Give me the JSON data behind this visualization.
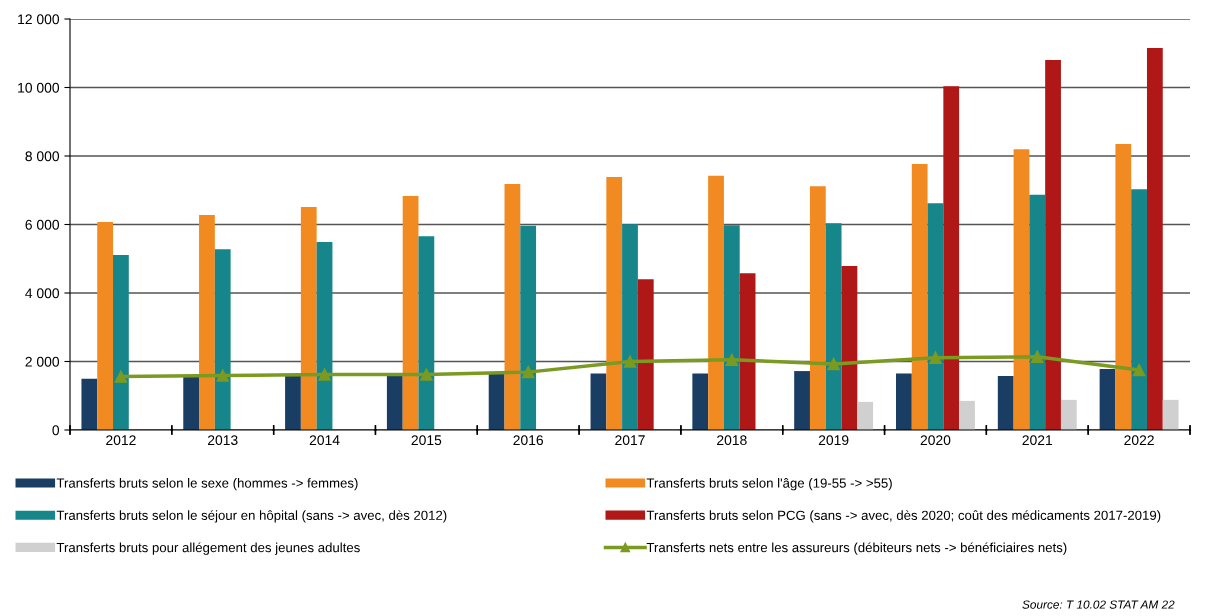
{
  "chart_data": {
    "type": "bar",
    "categories": [
      "2012",
      "2013",
      "2014",
      "2015",
      "2016",
      "2017",
      "2018",
      "2019",
      "2020",
      "2021",
      "2022"
    ],
    "series": [
      {
        "name": "Transferts bruts selon le sexe (hommes -> femmes)",
        "color": "#193d63",
        "values": [
          1500,
          1550,
          1600,
          1600,
          1650,
          1650,
          1650,
          1720,
          1650,
          1580,
          1780
        ]
      },
      {
        "name": "Transferts bruts selon l'âge (19-55 -> >55)",
        "color": "#f28a22",
        "values": [
          6070,
          6280,
          6510,
          6830,
          7180,
          7390,
          7420,
          7120,
          7770,
          8200,
          8350
        ]
      },
      {
        "name": "Transferts bruts selon le séjour en hôpital (sans -> avec, dès 2012)",
        "color": "#16868b",
        "values": [
          5110,
          5280,
          5490,
          5660,
          5960,
          6010,
          5980,
          6040,
          6620,
          6870,
          7030
        ]
      },
      {
        "name": "Transferts bruts selon PCG (sans -> avec, dès 2020; coût des médicaments 2017-2019)",
        "color": "#b01818",
        "values": [
          null,
          null,
          null,
          null,
          null,
          4400,
          4580,
          4790,
          10040,
          10800,
          11150
        ]
      },
      {
        "name": "Transferts bruts pour allégement des jeunes adultes",
        "color": "#d0d0d0",
        "values": [
          null,
          null,
          null,
          null,
          null,
          null,
          null,
          820,
          850,
          880,
          880
        ]
      },
      {
        "name": "Transferts nets entre les assureurs (débiteurs nets -> bénéficiaires nets)",
        "color": "#7a9a22",
        "type": "line",
        "marker": "triangle",
        "values": [
          1560,
          1590,
          1620,
          1620,
          1690,
          2000,
          2050,
          1930,
          2110,
          2140,
          1750
        ]
      }
    ],
    "ylim": [
      0,
      12000
    ],
    "yticks": [
      0,
      {
        "value": 2000,
        "label": "2 000"
      },
      {
        "value": 4000,
        "label": "4 000"
      },
      {
        "value": 6000,
        "label": "6 000"
      },
      {
        "value": 8000,
        "label": "8 000"
      },
      {
        "value": 10000,
        "label": "10 000"
      },
      {
        "value": 12000,
        "label": "12 000"
      }
    ],
    "grid": "y",
    "legend": "bottom",
    "annotations": [
      "Source: T 10.02 STAT AM 22"
    ]
  }
}
